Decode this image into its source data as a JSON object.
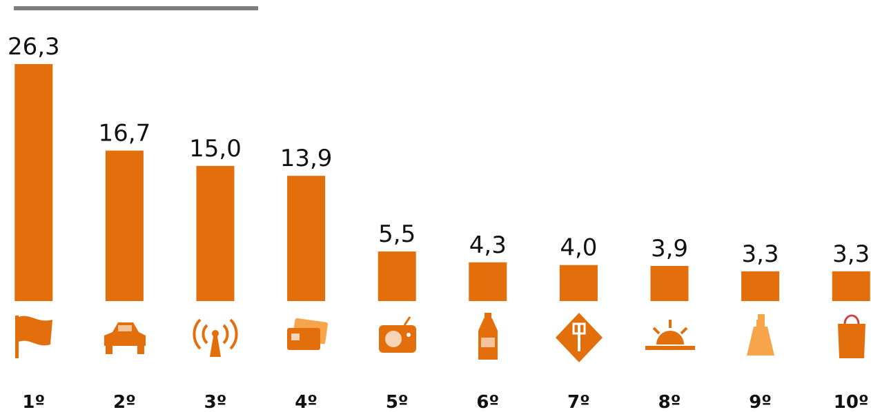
{
  "chart_data": {
    "type": "bar",
    "categories": [
      "1º",
      "2º",
      "3º",
      "4º",
      "5º",
      "6º",
      "7º",
      "8º",
      "9º",
      "10º"
    ],
    "values": [
      26.3,
      16.7,
      15.0,
      13.9,
      5.5,
      4.3,
      4.0,
      3.9,
      3.3,
      3.3
    ],
    "value_labels": [
      "26,3",
      "16,7",
      "15,0",
      "13,9",
      "5,5",
      "4,3",
      "4,0",
      "3,9",
      "3,3",
      "3,3"
    ],
    "color": "#e36f0c"
  }
}
